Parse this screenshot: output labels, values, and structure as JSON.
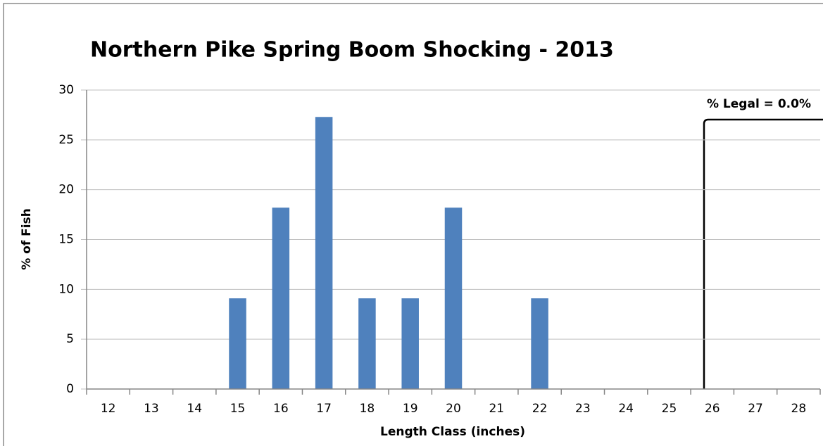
{
  "chart_data": {
    "type": "bar",
    "title": "Northern Pike Spring Boom Shocking - 2013",
    "x_label": "Length Class (inches)",
    "y_label": "% of Fish",
    "annotation": "% Legal = 0.0%",
    "categories": [
      "12",
      "13",
      "14",
      "15",
      "16",
      "17",
      "18",
      "19",
      "20",
      "21",
      "22",
      "23",
      "24",
      "25",
      "26",
      "27",
      "28"
    ],
    "values": [
      0,
      0,
      0,
      9.1,
      18.2,
      27.3,
      9.1,
      9.1,
      18.2,
      0,
      9.1,
      0,
      0,
      0,
      0,
      0,
      0
    ],
    "color": "#4f81bd",
    "ylim": [
      0,
      30
    ],
    "yticks": [
      0,
      5,
      10,
      15,
      20,
      25,
      30
    ],
    "grid": true
  }
}
